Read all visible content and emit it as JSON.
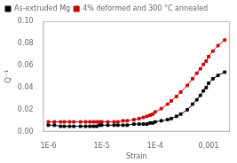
{
  "chart_data": {
    "type": "line",
    "xlabel": "Strain",
    "ylabel": "Q⁻¹",
    "log": "x",
    "xlim": [
      8e-07,
      0.0025
    ],
    "xticks": [
      {
        "value": 1e-06,
        "label": "1E-6"
      },
      {
        "value": 1e-05,
        "label": "1E-5"
      },
      {
        "value": 0.0001,
        "label": "1E-4"
      },
      0.001
    ],
    "ylim": [
      0,
      0.1
    ],
    "yticks": [
      {
        "value": 0,
        "label": "0.00"
      },
      0.02,
      0.04,
      0.06,
      0.08,
      {
        "value": 0.1,
        "label": "0.10"
      }
    ],
    "grid": false,
    "legend": "upper left",
    "marker": "square",
    "line_style": "solid",
    "x": [
      1e-06,
      1.3e-06,
      1.7e-06,
      2e-06,
      2.5e-06,
      3e-06,
      4e-06,
      5e-06,
      6e-06,
      7e-06,
      8e-06,
      9e-06,
      1e-05,
      1.3e-05,
      1.7e-05,
      2e-05,
      2.5e-05,
      3e-05,
      4e-05,
      5e-05,
      6e-05,
      7e-05,
      8e-05,
      9e-05,
      0.0001,
      0.00013,
      0.00017,
      0.0002,
      0.00025,
      0.0003,
      0.0004,
      0.0005,
      0.0006,
      0.0007,
      0.0008,
      0.0009,
      0.001,
      0.0012,
      0.0015,
      0.002
    ],
    "series": [
      {
        "name": "As-extruded Mg",
        "color": "#000000",
        "values": [
          0.006,
          0.006,
          0.005,
          0.005,
          0.005,
          0.005,
          0.005,
          0.005,
          0.005,
          0.005,
          0.005,
          0.006,
          0.006,
          0.006,
          0.006,
          0.006,
          0.006,
          0.006,
          0.007,
          0.007,
          0.007,
          0.007,
          0.008,
          0.008,
          0.009,
          0.01,
          0.011,
          0.012,
          0.014,
          0.016,
          0.02,
          0.025,
          0.029,
          0.033,
          0.037,
          0.04,
          0.044,
          0.048,
          0.051,
          0.054
        ]
      },
      {
        "name": "4% deformed and 300 °C annealed",
        "color": "#cc0000",
        "values": [
          0.009,
          0.009,
          0.009,
          0.009,
          0.009,
          0.009,
          0.009,
          0.009,
          0.009,
          0.009,
          0.009,
          0.009,
          0.009,
          0.009,
          0.009,
          0.009,
          0.01,
          0.01,
          0.011,
          0.012,
          0.013,
          0.014,
          0.015,
          0.016,
          0.018,
          0.021,
          0.025,
          0.028,
          0.032,
          0.036,
          0.042,
          0.048,
          0.053,
          0.057,
          0.061,
          0.064,
          0.068,
          0.073,
          0.078,
          0.083
        ]
      }
    ]
  }
}
